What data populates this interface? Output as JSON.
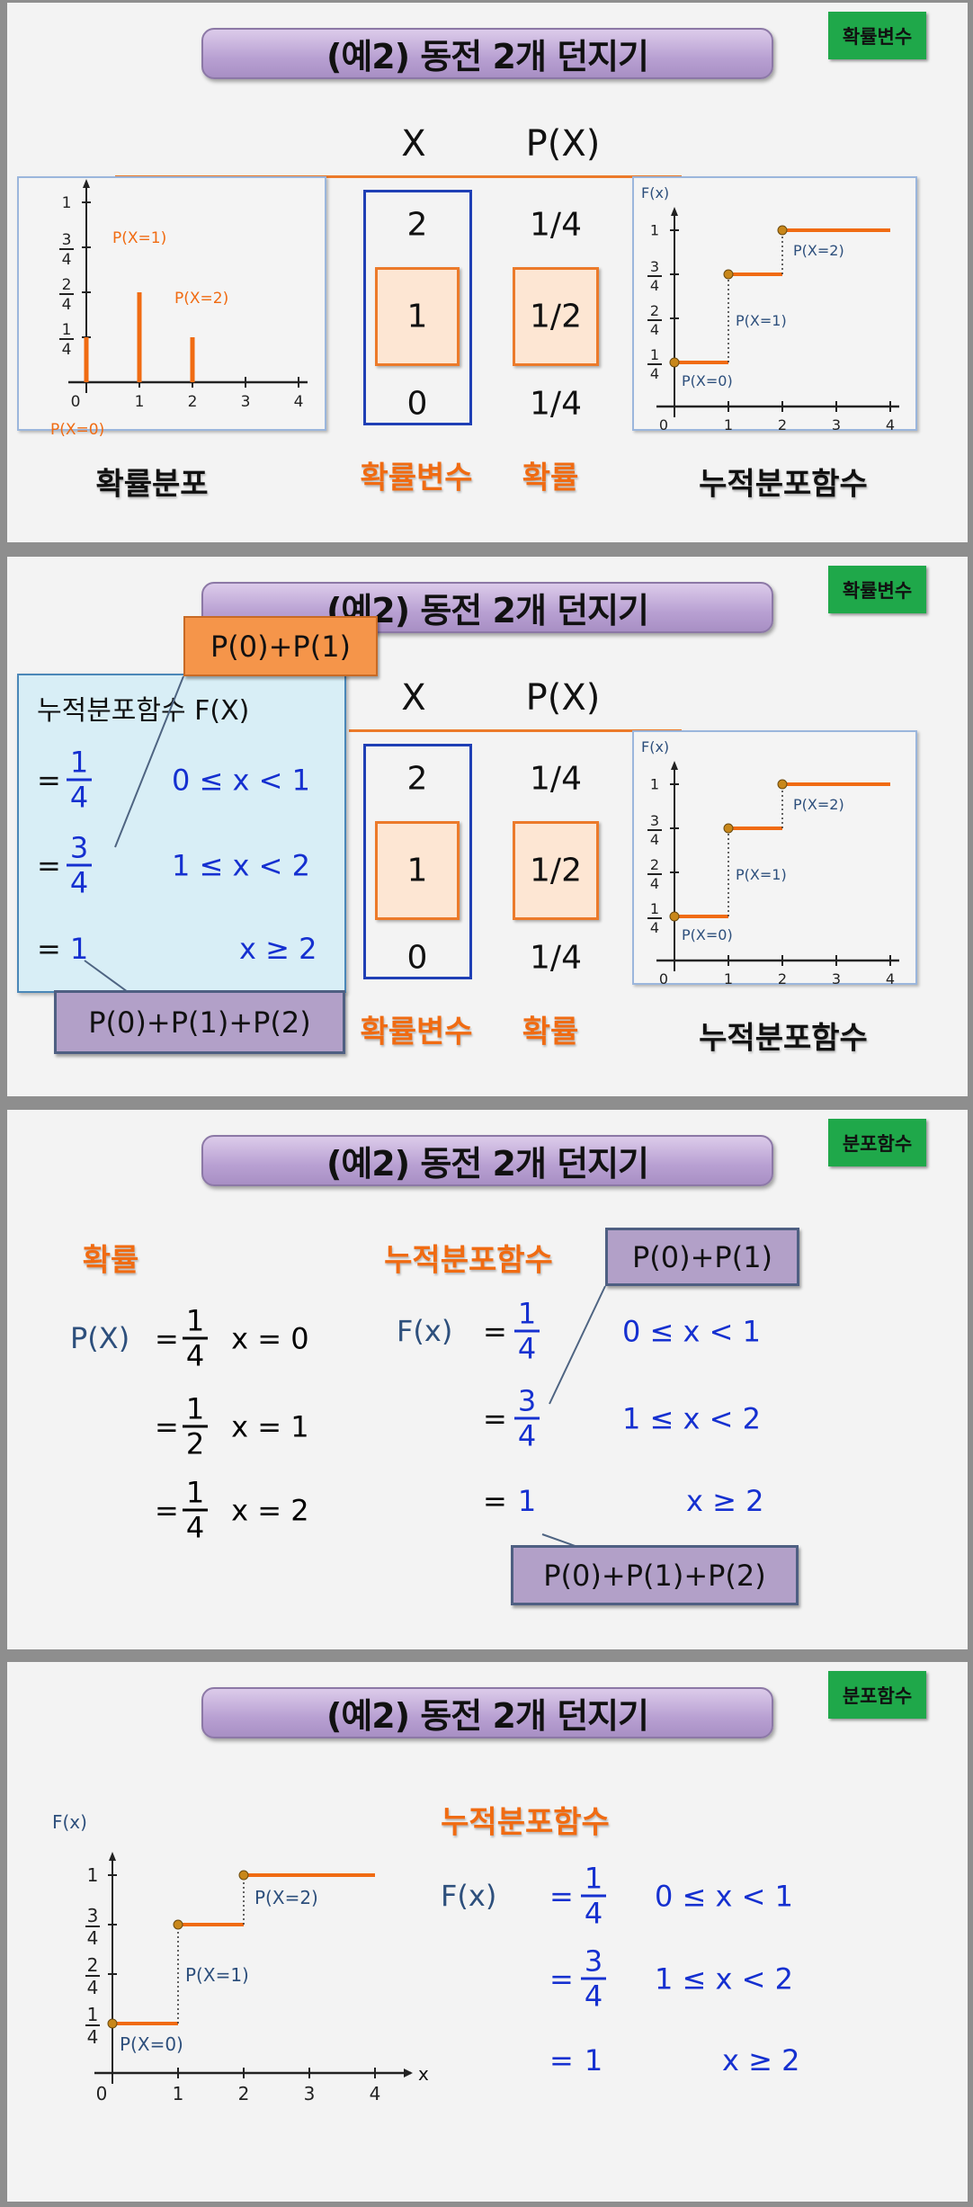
{
  "title": "(예2) 동전 2개 던지기",
  "badges": [
    "확률변수",
    "확률변수",
    "분포함수",
    "분포함수"
  ],
  "table": {
    "x_header": "X",
    "p_header": "P(X)",
    "rows": [
      {
        "x": "2",
        "p": "1/4"
      },
      {
        "x": "1",
        "p": "1/2"
      },
      {
        "x": "0",
        "p": "1/4"
      }
    ]
  },
  "labels": {
    "pmf": "확률분포",
    "rv": "확률변수",
    "prob": "확률",
    "cdf": "누적분포함수"
  },
  "cdf_box_title": "누적분포함수 F(X)",
  "eq": "=",
  "F_lhs": "F(x)",
  "P_lhs": "P(X)",
  "pieces": [
    {
      "num": "1",
      "den": "4",
      "cond": "0 ≤ x < 1"
    },
    {
      "num": "3",
      "den": "4",
      "cond": "1 ≤ x < 2"
    },
    {
      "val": "1",
      "cond": "x ≥ 2"
    }
  ],
  "pmf_rows": [
    {
      "num": "1",
      "den": "4",
      "cond": "x = 0"
    },
    {
      "num": "1",
      "den": "2",
      "cond": "x = 1"
    },
    {
      "num": "1",
      "den": "4",
      "cond": "x = 2"
    }
  ],
  "callouts": {
    "a": "P(0)+P(1)",
    "b": "P(0)+P(1)+P(2)"
  },
  "graph": {
    "ylabel": "F(x)",
    "xlabel": "x",
    "xticks": [
      "0",
      "1",
      "2",
      "3",
      "4"
    ],
    "yticks": [
      {
        "num": "1",
        "den": "4"
      },
      {
        "num": "2",
        "den": "4"
      },
      {
        "num": "3",
        "den": "4"
      },
      {
        "val": "1"
      }
    ],
    "pmf": {
      "x": [
        0,
        1,
        2
      ],
      "p": [
        0.25,
        0.5,
        0.25
      ],
      "labels": [
        "P(X=0)",
        "P(X=1)",
        "P(X=2)"
      ]
    },
    "cdf": [
      {
        "from": 0,
        "to": 1,
        "F": 0.25
      },
      {
        "from": 1,
        "to": 2,
        "F": 0.75
      },
      {
        "from": 2,
        "to": 4,
        "F": 1
      }
    ],
    "colors": {
      "bar": "#f06b12",
      "label_pmf": "#f06b12",
      "label_cdf": "#2d4f7c",
      "dot": "#c8871a"
    }
  }
}
